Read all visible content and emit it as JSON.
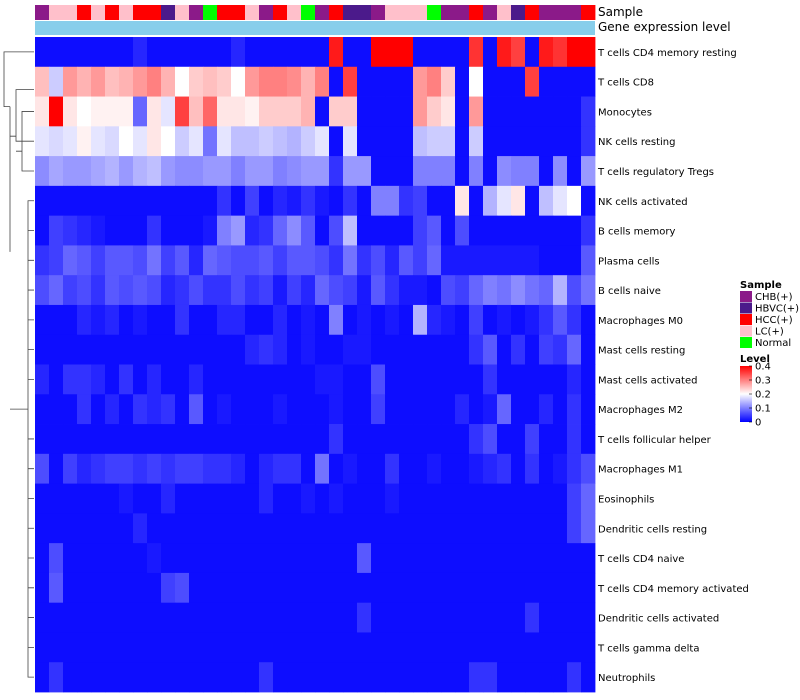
{
  "chart_data": {
    "type": "heatmap",
    "title": "",
    "annotation_tracks": [
      "Sample",
      "Gene expression level"
    ],
    "rows": [
      "T cells CD4 memory resting",
      "T cells CD8",
      "Monocytes",
      "NK cells resting",
      "T cells regulatory  Tregs",
      "NK cells activated",
      "B cells memory",
      "Plasma cells",
      "B cells naive",
      "Macrophages M0",
      "Mast cells resting",
      "Mast cells activated",
      "Macrophages M2",
      "T cells follicular helper",
      "Macrophages M1",
      "Eosinophils",
      "Dendritic cells resting",
      "T cells CD4 naive",
      "T cells CD4 memory activated",
      "Dendritic cells activated",
      "T cells gamma delta",
      "Neutrophils"
    ],
    "sample_groups": [
      "CHB(+)",
      "LC(+)",
      "LC(+)",
      "HCC(+)",
      "LC(+)",
      "HCC(+)",
      "LC(+)",
      "HCC(+)",
      "HCC(+)",
      "HBVC(+)",
      "LC(+)",
      "CHB(+)",
      "Normal",
      "HCC(+)",
      "HCC(+)",
      "LC(+)",
      "CHB(+)",
      "HCC(+)",
      "LC(+)",
      "Normal",
      "CHB(+)",
      "HCC(+)",
      "HBVC(+)",
      "HBVC(+)",
      "CHB(+)",
      "LC(+)",
      "LC(+)",
      "LC(+)",
      "Normal",
      "CHB(+)",
      "CHB(+)",
      "HCC(+)",
      "CHB(+)",
      "LC(+)",
      "HBVC(+)",
      "HCC(+)",
      "CHB(+)",
      "CHB(+)",
      "CHB(+)",
      "HCC(+)"
    ],
    "legend_sample": {
      "title": "Sample",
      "items": [
        {
          "label": "CHB(+)",
          "color": "#8b1a89"
        },
        {
          "label": "HBVC(+)",
          "color": "#4b1a8b"
        },
        {
          "label": "HCC(+)",
          "color": "#ff0000"
        },
        {
          "label": "LC(+)",
          "color": "#ffc0cb"
        },
        {
          "label": "Normal",
          "color": "#00ff00"
        }
      ]
    },
    "legend_level": {
      "title": "Level",
      "ticks": [
        0.4,
        0.3,
        0.2,
        0.1,
        0
      ],
      "tick_labels": [
        "0.4",
        "0.3",
        "0.2",
        "0.1",
        "0"
      ],
      "range": [
        0,
        0.4
      ]
    },
    "expression_bar_color": "#87ceeb",
    "low_color": "#0000ff",
    "mid_color": "#ffffff",
    "high_color": "#ff0000",
    "values": [
      [
        0.01,
        0.01,
        0.01,
        0.01,
        0.01,
        0.01,
        0.01,
        0.03,
        0.01,
        0.01,
        0.01,
        0.01,
        0.01,
        0.01,
        0.03,
        0.01,
        0.01,
        0.01,
        0.01,
        0.01,
        0.01,
        0.38,
        0.01,
        0.01,
        0.4,
        0.4,
        0.4,
        0.01,
        0.01,
        0.01,
        0.01,
        0.36,
        0.01,
        0.38,
        0.35,
        0.01,
        0.38,
        0.36,
        0.4,
        0.4
      ],
      [
        0.25,
        0.16,
        0.28,
        0.26,
        0.28,
        0.25,
        0.26,
        0.28,
        0.3,
        0.26,
        0.2,
        0.24,
        0.25,
        0.24,
        0.2,
        0.28,
        0.3,
        0.3,
        0.29,
        0.26,
        0.3,
        0.01,
        0.35,
        0.01,
        0.01,
        0.01,
        0.01,
        0.28,
        0.3,
        0.24,
        0.01,
        0.2,
        0.01,
        0.01,
        0.01,
        0.35,
        0.01,
        0.01,
        0.01,
        0.01
      ],
      [
        0.22,
        0.4,
        0.22,
        0.2,
        0.21,
        0.21,
        0.21,
        0.08,
        0.22,
        0.18,
        0.35,
        0.25,
        0.32,
        0.22,
        0.22,
        0.21,
        0.24,
        0.24,
        0.24,
        0.26,
        0.01,
        0.24,
        0.24,
        0.01,
        0.01,
        0.01,
        0.01,
        0.28,
        0.24,
        0.22,
        0.01,
        0.28,
        0.01,
        0.01,
        0.01,
        0.01,
        0.01,
        0.01,
        0.01,
        0.04
      ],
      [
        0.18,
        0.17,
        0.18,
        0.21,
        0.18,
        0.17,
        0.2,
        0.18,
        0.22,
        0.2,
        0.16,
        0.18,
        0.09,
        0.18,
        0.15,
        0.15,
        0.16,
        0.15,
        0.14,
        0.16,
        0.18,
        0.01,
        0.18,
        0.01,
        0.01,
        0.01,
        0.01,
        0.15,
        0.16,
        0.16,
        0.01,
        0.16,
        0.01,
        0.01,
        0.01,
        0.01,
        0.01,
        0.01,
        0.01,
        0.04
      ],
      [
        0.11,
        0.13,
        0.12,
        0.12,
        0.13,
        0.14,
        0.12,
        0.14,
        0.15,
        0.12,
        0.11,
        0.11,
        0.12,
        0.12,
        0.1,
        0.12,
        0.12,
        0.1,
        0.11,
        0.12,
        0.12,
        0.04,
        0.12,
        0.12,
        0.01,
        0.01,
        0.01,
        0.1,
        0.1,
        0.1,
        0.01,
        0.1,
        0.01,
        0.11,
        0.1,
        0.1,
        0.01,
        0.11,
        0.01,
        0.12
      ],
      [
        0.01,
        0.01,
        0.01,
        0.01,
        0.01,
        0.01,
        0.01,
        0.01,
        0.01,
        0.01,
        0.01,
        0.01,
        0.01,
        0.04,
        0.01,
        0.05,
        0.01,
        0.03,
        0.02,
        0.04,
        0.02,
        0.01,
        0.04,
        0.01,
        0.1,
        0.1,
        0.04,
        0.05,
        0.01,
        0.01,
        0.22,
        0.01,
        0.14,
        0.18,
        0.22,
        0.01,
        0.15,
        0.18,
        0.2,
        0.01
      ],
      [
        0.01,
        0.05,
        0.04,
        0.03,
        0.02,
        0.01,
        0.01,
        0.01,
        0.04,
        0.01,
        0.01,
        0.01,
        0.02,
        0.1,
        0.12,
        0.03,
        0.04,
        0.08,
        0.11,
        0.07,
        0.01,
        0.06,
        0.15,
        0.01,
        0.01,
        0.01,
        0.01,
        0.05,
        0.07,
        0.01,
        0.06,
        0.01,
        0.01,
        0.01,
        0.01,
        0.01,
        0.01,
        0.01,
        0.01,
        0.04
      ],
      [
        0.04,
        0.05,
        0.08,
        0.07,
        0.05,
        0.07,
        0.07,
        0.06,
        0.09,
        0.05,
        0.07,
        0.03,
        0.08,
        0.07,
        0.06,
        0.06,
        0.07,
        0.05,
        0.07,
        0.07,
        0.06,
        0.04,
        0.09,
        0.04,
        0.06,
        0.03,
        0.07,
        0.05,
        0.08,
        0.02,
        0.02,
        0.02,
        0.02,
        0.02,
        0.02,
        0.02,
        0.01,
        0.01,
        0.01,
        0.07
      ],
      [
        0.06,
        0.08,
        0.05,
        0.06,
        0.04,
        0.07,
        0.06,
        0.07,
        0.06,
        0.03,
        0.04,
        0.06,
        0.04,
        0.04,
        0.06,
        0.04,
        0.05,
        0.02,
        0.05,
        0.03,
        0.08,
        0.06,
        0.05,
        0.02,
        0.07,
        0.04,
        0.02,
        0.02,
        0.01,
        0.06,
        0.05,
        0.08,
        0.1,
        0.09,
        0.11,
        0.09,
        0.08,
        0.14,
        0.06,
        0.09
      ],
      [
        0.01,
        0.01,
        0.01,
        0.03,
        0.02,
        0.03,
        0.01,
        0.02,
        0.01,
        0.01,
        0.04,
        0.01,
        0.01,
        0.03,
        0.03,
        0.01,
        0.01,
        0.03,
        0.01,
        0.02,
        0.01,
        0.1,
        0.01,
        0.02,
        0.01,
        0.02,
        0.01,
        0.14,
        0.03,
        0.02,
        0.01,
        0.05,
        0.01,
        0.02,
        0.01,
        0.02,
        0.04,
        0.07,
        0.04,
        0.01
      ],
      [
        0.01,
        0.01,
        0.01,
        0.01,
        0.01,
        0.01,
        0.01,
        0.01,
        0.01,
        0.01,
        0.01,
        0.01,
        0.01,
        0.01,
        0.01,
        0.03,
        0.04,
        0.03,
        0.01,
        0.02,
        0.01,
        0.01,
        0.02,
        0.02,
        0.01,
        0.01,
        0.01,
        0.01,
        0.01,
        0.01,
        0.01,
        0.04,
        0.07,
        0.01,
        0.04,
        0.01,
        0.05,
        0.04,
        0.08,
        0.01
      ],
      [
        0.03,
        0.01,
        0.04,
        0.04,
        0.03,
        0.01,
        0.04,
        0.01,
        0.03,
        0.01,
        0.01,
        0.03,
        0.01,
        0.01,
        0.01,
        0.01,
        0.01,
        0.01,
        0.01,
        0.01,
        0.02,
        0.02,
        0.01,
        0.01,
        0.06,
        0.01,
        0.01,
        0.01,
        0.01,
        0.01,
        0.01,
        0.01,
        0.04,
        0.01,
        0.01,
        0.01,
        0.01,
        0.01,
        0.03,
        0.01
      ],
      [
        0.01,
        0.01,
        0.01,
        0.04,
        0.01,
        0.03,
        0.01,
        0.04,
        0.03,
        0.04,
        0.01,
        0.07,
        0.01,
        0.02,
        0.01,
        0.01,
        0.01,
        0.02,
        0.01,
        0.01,
        0.01,
        0.02,
        0.01,
        0.01,
        0.05,
        0.01,
        0.01,
        0.01,
        0.01,
        0.01,
        0.03,
        0.01,
        0.02,
        0.08,
        0.01,
        0.01,
        0.03,
        0.01,
        0.04,
        0.01
      ],
      [
        0.01,
        0.01,
        0.01,
        0.01,
        0.01,
        0.01,
        0.01,
        0.01,
        0.01,
        0.01,
        0.01,
        0.01,
        0.01,
        0.01,
        0.01,
        0.01,
        0.01,
        0.01,
        0.01,
        0.01,
        0.01,
        0.04,
        0.01,
        0.01,
        0.01,
        0.01,
        0.01,
        0.01,
        0.01,
        0.01,
        0.01,
        0.04,
        0.06,
        0.01,
        0.01,
        0.05,
        0.01,
        0.01,
        0.04,
        0.01
      ],
      [
        0.06,
        0.01,
        0.05,
        0.03,
        0.04,
        0.05,
        0.05,
        0.04,
        0.05,
        0.04,
        0.05,
        0.05,
        0.04,
        0.04,
        0.03,
        0.01,
        0.03,
        0.04,
        0.04,
        0.01,
        0.09,
        0.01,
        0.02,
        0.01,
        0.01,
        0.04,
        0.01,
        0.01,
        0.02,
        0.01,
        0.01,
        0.02,
        0.03,
        0.04,
        0.01,
        0.04,
        0.01,
        0.02,
        0.04,
        0.06
      ],
      [
        0.01,
        0.01,
        0.01,
        0.01,
        0.01,
        0.01,
        0.02,
        0.01,
        0.01,
        0.03,
        0.01,
        0.01,
        0.01,
        0.01,
        0.01,
        0.01,
        0.03,
        0.01,
        0.01,
        0.02,
        0.01,
        0.02,
        0.01,
        0.01,
        0.01,
        0.02,
        0.01,
        0.01,
        0.01,
        0.01,
        0.01,
        0.01,
        0.01,
        0.01,
        0.01,
        0.01,
        0.01,
        0.01,
        0.05,
        0.08
      ],
      [
        0.01,
        0.01,
        0.01,
        0.01,
        0.01,
        0.01,
        0.01,
        0.03,
        0.01,
        0.01,
        0.01,
        0.01,
        0.01,
        0.01,
        0.01,
        0.01,
        0.01,
        0.01,
        0.01,
        0.01,
        0.01,
        0.01,
        0.01,
        0.01,
        0.01,
        0.01,
        0.01,
        0.01,
        0.01,
        0.01,
        0.01,
        0.01,
        0.01,
        0.01,
        0.01,
        0.01,
        0.01,
        0.01,
        0.05,
        0.08
      ],
      [
        0.01,
        0.06,
        0.01,
        0.01,
        0.01,
        0.01,
        0.01,
        0.01,
        0.02,
        0.01,
        0.01,
        0.01,
        0.01,
        0.01,
        0.01,
        0.01,
        0.01,
        0.01,
        0.01,
        0.01,
        0.01,
        0.01,
        0.01,
        0.07,
        0.01,
        0.01,
        0.01,
        0.01,
        0.01,
        0.01,
        0.01,
        0.01,
        0.01,
        0.01,
        0.01,
        0.01,
        0.01,
        0.01,
        0.01,
        0.01
      ],
      [
        0.01,
        0.07,
        0.01,
        0.01,
        0.01,
        0.01,
        0.01,
        0.01,
        0.01,
        0.05,
        0.06,
        0.01,
        0.01,
        0.01,
        0.01,
        0.01,
        0.01,
        0.01,
        0.01,
        0.01,
        0.01,
        0.01,
        0.01,
        0.01,
        0.01,
        0.01,
        0.01,
        0.01,
        0.01,
        0.01,
        0.01,
        0.01,
        0.01,
        0.01,
        0.01,
        0.01,
        0.01,
        0.01,
        0.01,
        0.01
      ],
      [
        0.01,
        0.01,
        0.01,
        0.01,
        0.01,
        0.01,
        0.01,
        0.01,
        0.01,
        0.01,
        0.01,
        0.01,
        0.01,
        0.01,
        0.01,
        0.01,
        0.01,
        0.01,
        0.01,
        0.01,
        0.01,
        0.01,
        0.01,
        0.04,
        0.01,
        0.01,
        0.01,
        0.01,
        0.01,
        0.01,
        0.01,
        0.01,
        0.01,
        0.01,
        0.01,
        0.04,
        0.01,
        0.01,
        0.01,
        0.01
      ],
      [
        0.01,
        0.01,
        0.01,
        0.01,
        0.01,
        0.01,
        0.01,
        0.01,
        0.01,
        0.01,
        0.01,
        0.01,
        0.01,
        0.01,
        0.01,
        0.01,
        0.01,
        0.01,
        0.01,
        0.01,
        0.01,
        0.01,
        0.01,
        0.01,
        0.01,
        0.01,
        0.01,
        0.01,
        0.01,
        0.01,
        0.01,
        0.01,
        0.01,
        0.01,
        0.01,
        0.01,
        0.01,
        0.01,
        0.01,
        0.01
      ],
      [
        0.01,
        0.04,
        0.01,
        0.01,
        0.01,
        0.01,
        0.01,
        0.01,
        0.01,
        0.01,
        0.01,
        0.01,
        0.01,
        0.01,
        0.01,
        0.01,
        0.04,
        0.01,
        0.01,
        0.01,
        0.01,
        0.01,
        0.01,
        0.01,
        0.01,
        0.01,
        0.01,
        0.01,
        0.01,
        0.01,
        0.01,
        0.04,
        0.04,
        0.01,
        0.01,
        0.01,
        0.01,
        0.01,
        0.04,
        0.01
      ]
    ]
  }
}
